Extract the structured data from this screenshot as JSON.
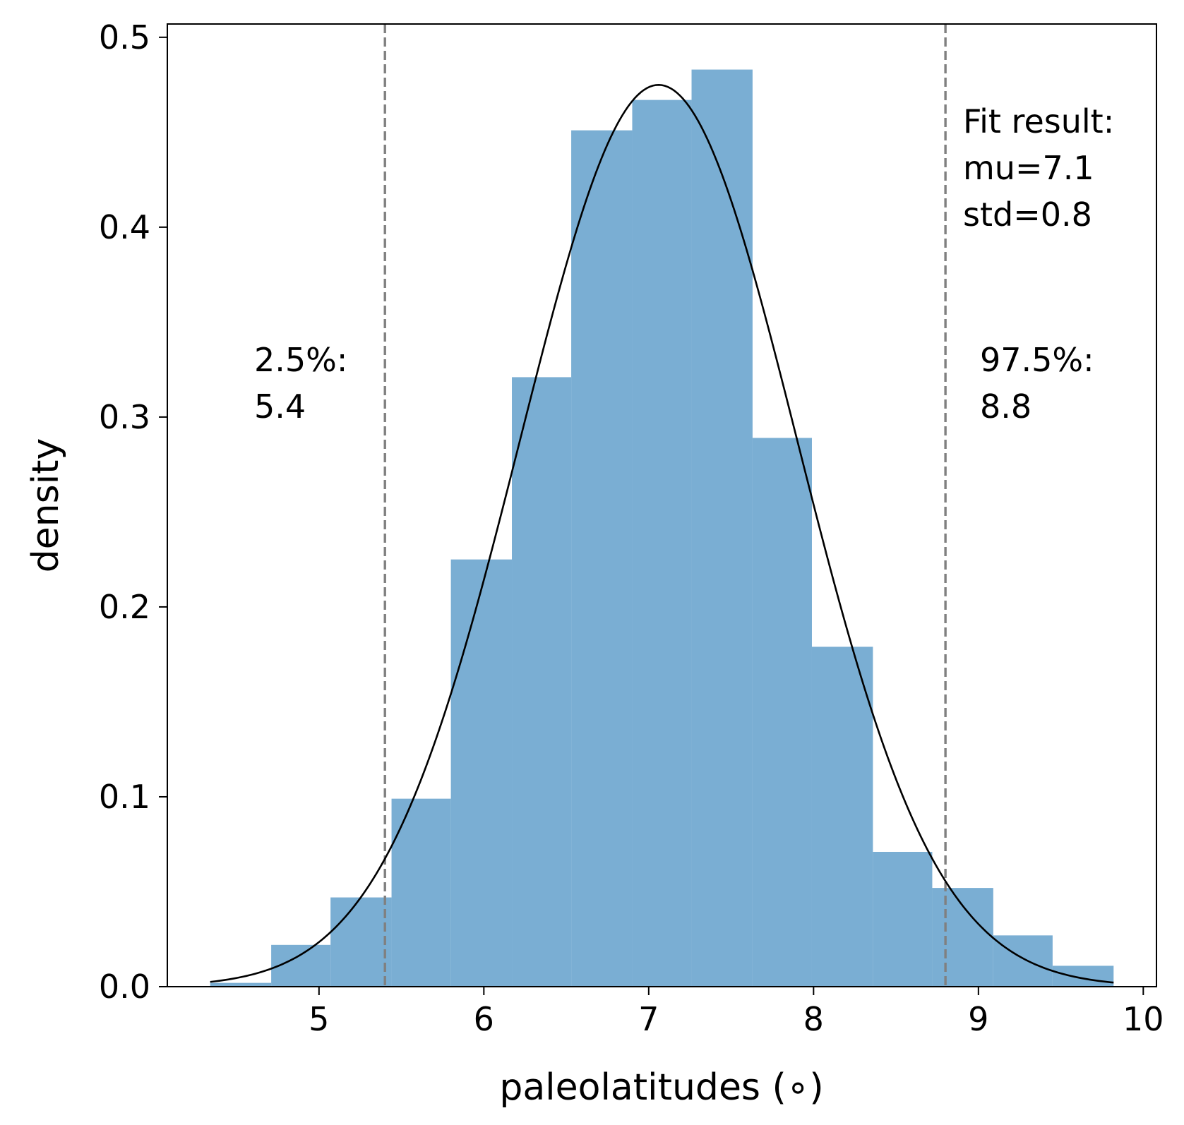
{
  "chart_data": {
    "type": "bar",
    "xlabel": "paleolatitudes (∘)",
    "ylabel": "density",
    "xlim": [
      4.08,
      10.08
    ],
    "ylim": [
      0.0,
      0.507
    ],
    "x_ticks": [
      "5",
      "6",
      "7",
      "8",
      "9",
      "10"
    ],
    "x_tick_values": [
      5,
      6,
      7,
      8,
      9,
      10
    ],
    "y_ticks": [
      "0.0",
      "0.1",
      "0.2",
      "0.3",
      "0.4",
      "0.5"
    ],
    "y_tick_values": [
      0.0,
      0.1,
      0.2,
      0.3,
      0.4,
      0.5
    ],
    "grid": false,
    "bar_color": "#7aaed3",
    "histogram": {
      "bin_edges": [
        4.34,
        4.71,
        5.07,
        5.44,
        5.8,
        6.17,
        6.53,
        6.9,
        7.26,
        7.63,
        7.99,
        8.36,
        8.72,
        9.09,
        9.45,
        9.82
      ],
      "values": [
        0.002,
        0.022,
        0.047,
        0.099,
        0.225,
        0.321,
        0.451,
        0.467,
        0.483,
        0.289,
        0.179,
        0.071,
        0.052,
        0.027,
        0.011
      ]
    },
    "fit_curve": {
      "mu": 7.06,
      "std": 0.84,
      "x_range": [
        4.34,
        9.82
      ],
      "color": "#000000"
    },
    "vlines": [
      {
        "x": 5.4,
        "color": "#808080",
        "style": "dashed"
      },
      {
        "x": 8.8,
        "color": "#808080",
        "style": "dashed"
      }
    ],
    "annotations": {
      "lower": [
        "2.5%:",
        "5.4"
      ],
      "upper": [
        "97.5%:",
        "8.8"
      ],
      "fit": [
        "Fit result:",
        "mu=7.1",
        "std=0.8"
      ]
    }
  }
}
